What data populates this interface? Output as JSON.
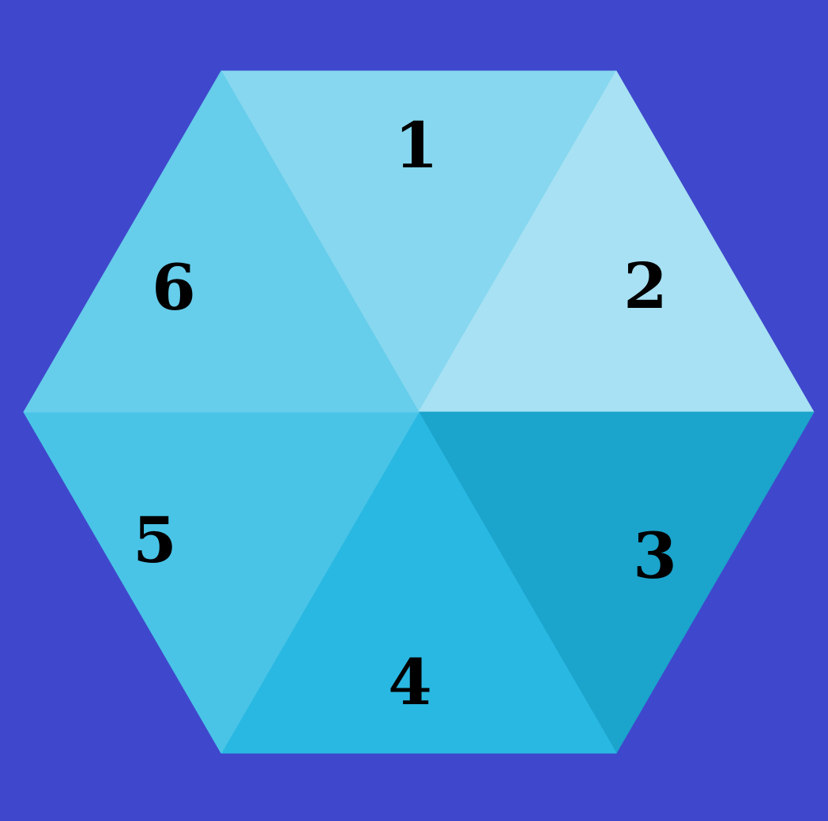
{
  "background_color": "#3f48cc",
  "segments": [
    {
      "label": "1",
      "color": "#86d7ef"
    },
    {
      "label": "2",
      "color": "#a7e1f3"
    },
    {
      "label": "3",
      "color": "#1ba4cc"
    },
    {
      "label": "4",
      "color": "#29b8e2"
    },
    {
      "label": "5",
      "color": "#49c4e7"
    },
    {
      "label": "6",
      "color": "#66cdeb"
    }
  ]
}
